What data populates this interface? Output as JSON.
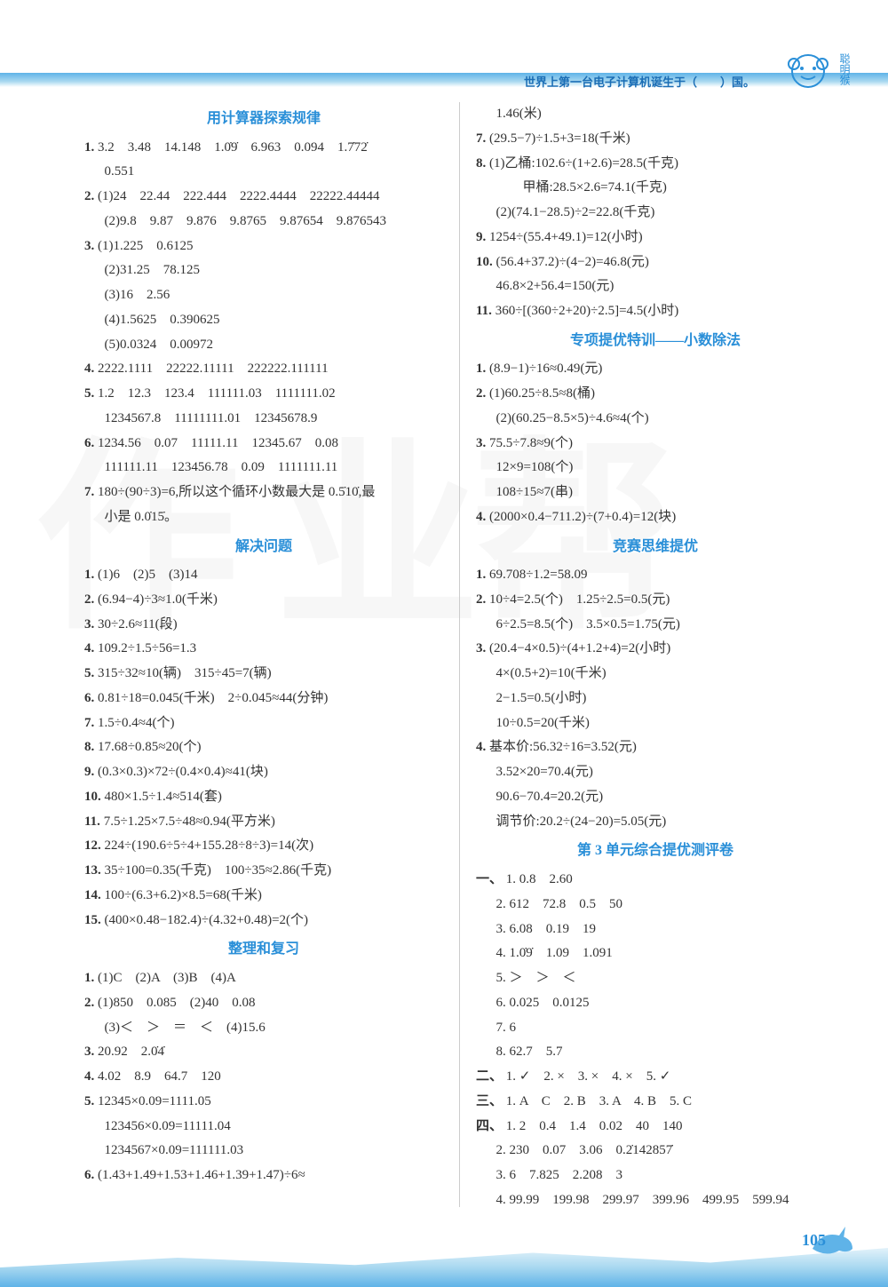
{
  "header": {
    "trivia": "世界上第一台电子计算机诞生于（　　）国。",
    "mascot_label": "聪明猴"
  },
  "page_number": "105",
  "watermark": {
    "text1": "作业",
    "text2": "帮"
  },
  "left": {
    "sections": [
      {
        "title": "用计算器探索规律",
        "items": [
          {
            "n": "1.",
            "t": "3.2　3.48　14.148　1.0̇9̇　6.963　0.094　1.7̇72̇"
          },
          {
            "n": "",
            "t": "0.551",
            "indent": true
          },
          {
            "n": "2.",
            "t": "(1)24　22.44　222.444　2222.4444　22222.44444"
          },
          {
            "n": "",
            "t": "(2)9.8　9.87　9.876　9.8765　9.87654　9.876543",
            "indent": true
          },
          {
            "n": "3.",
            "t": "(1)1.225　0.6125"
          },
          {
            "n": "",
            "t": "(2)31.25　78.125",
            "indent": true
          },
          {
            "n": "",
            "t": "(3)16　2.56",
            "indent": true
          },
          {
            "n": "",
            "t": "(4)1.5625　0.390625",
            "indent": true
          },
          {
            "n": "",
            "t": "(5)0.0324　0.00972",
            "indent": true
          },
          {
            "n": "4.",
            "t": "2222.1111　22222.11111　222222.111111"
          },
          {
            "n": "5.",
            "t": "1.2　12.3　123.4　111111.03　1111111.02"
          },
          {
            "n": "",
            "t": "1234567.8　11111111.01　12345678.9",
            "indent": true
          },
          {
            "n": "6.",
            "t": "1234.56　0.07　11111.11　12345.67　0.08"
          },
          {
            "n": "",
            "t": "111111.11　123456.78　0.09　1111111.11",
            "indent": true
          },
          {
            "n": "7.",
            "t": "180÷(90÷3)=6,所以这个循环小数最大是 0.5̇10̇,最"
          },
          {
            "n": "",
            "t": "小是 0.0̇15̇。",
            "indent": true
          }
        ]
      },
      {
        "title": "解决问题",
        "items": [
          {
            "n": "1.",
            "t": "(1)6　(2)5　(3)14"
          },
          {
            "n": "2.",
            "t": "(6.94−4)÷3≈1.0(千米)"
          },
          {
            "n": "3.",
            "t": "30÷2.6≈11(段)"
          },
          {
            "n": "4.",
            "t": "109.2÷1.5÷56=1.3"
          },
          {
            "n": "5.",
            "t": "315÷32≈10(辆)　315÷45=7(辆)"
          },
          {
            "n": "6.",
            "t": "0.81÷18=0.045(千米)　2÷0.045≈44(分钟)"
          },
          {
            "n": "7.",
            "t": "1.5÷0.4≈4(个)"
          },
          {
            "n": "8.",
            "t": "17.68÷0.85≈20(个)"
          },
          {
            "n": "9.",
            "t": "(0.3×0.3)×72÷(0.4×0.4)≈41(块)"
          },
          {
            "n": "10.",
            "t": "480×1.5÷1.4≈514(套)"
          },
          {
            "n": "11.",
            "t": "7.5÷1.25×7.5÷48≈0.94(平方米)"
          },
          {
            "n": "12.",
            "t": "224÷(190.6÷5÷4+155.28÷8÷3)=14(次)"
          },
          {
            "n": "13.",
            "t": "35÷100=0.35(千克)　100÷35≈2.86(千克)"
          },
          {
            "n": "14.",
            "t": "100÷(6.3+6.2)×8.5=68(千米)"
          },
          {
            "n": "15.",
            "t": "(400×0.48−182.4)÷(4.32+0.48)=2(个)"
          }
        ]
      },
      {
        "title": "整理和复习",
        "items": [
          {
            "n": "1.",
            "t": "(1)C　(2)A　(3)B　(4)A"
          },
          {
            "n": "2.",
            "t": "(1)850　0.085　(2)40　0.08"
          },
          {
            "n": "",
            "t": "(3)＜　＞　＝　＜　(4)15.6",
            "indent": true
          },
          {
            "n": "3.",
            "t": "20.92　2.0̇4̇"
          },
          {
            "n": "4.",
            "t": "4.02　8.9　64.7　120"
          },
          {
            "n": "5.",
            "t": "12345×0.09=1111.05"
          },
          {
            "n": "",
            "t": "123456×0.09=11111.04",
            "indent": true
          },
          {
            "n": "",
            "t": "1234567×0.09=111111.03",
            "indent": true
          },
          {
            "n": "6.",
            "t": "(1.43+1.49+1.53+1.46+1.39+1.47)÷6≈"
          }
        ]
      }
    ]
  },
  "right": {
    "sections": [
      {
        "title": "",
        "items": [
          {
            "n": "",
            "t": "1.46(米)",
            "indent": true
          },
          {
            "n": "7.",
            "t": "(29.5−7)÷1.5+3=18(千米)"
          },
          {
            "n": "8.",
            "t": "(1)乙桶:102.6÷(1+2.6)=28.5(千克)"
          },
          {
            "n": "",
            "t": "　　甲桶:28.5×2.6=74.1(千克)",
            "indent": true
          },
          {
            "n": "",
            "t": "(2)(74.1−28.5)÷2=22.8(千克)",
            "indent": true
          },
          {
            "n": "9.",
            "t": "1254÷(55.4+49.1)=12(小时)"
          },
          {
            "n": "10.",
            "t": "(56.4+37.2)÷(4−2)=46.8(元)"
          },
          {
            "n": "",
            "t": "46.8×2+56.4=150(元)",
            "indent": true
          },
          {
            "n": "11.",
            "t": "360÷[(360÷2+20)÷2.5]=4.5(小时)"
          }
        ]
      },
      {
        "title": "专项提优特训——小数除法",
        "items": [
          {
            "n": "1.",
            "t": "(8.9−1)÷16≈0.49(元)"
          },
          {
            "n": "2.",
            "t": "(1)60.25÷8.5≈8(桶)"
          },
          {
            "n": "",
            "t": "(2)(60.25−8.5×5)÷4.6≈4(个)",
            "indent": true
          },
          {
            "n": "3.",
            "t": "75.5÷7.8≈9(个)"
          },
          {
            "n": "",
            "t": "12×9=108(个)",
            "indent": true
          },
          {
            "n": "",
            "t": "108÷15≈7(串)",
            "indent": true
          },
          {
            "n": "4.",
            "t": "(2000×0.4−711.2)÷(7+0.4)=12(块)"
          }
        ]
      },
      {
        "title": "竞赛思维提优",
        "items": [
          {
            "n": "1.",
            "t": "69.708÷1.2=58.09"
          },
          {
            "n": "2.",
            "t": "10÷4=2.5(个)　1.25÷2.5=0.5(元)"
          },
          {
            "n": "",
            "t": "6÷2.5=8.5(个)　3.5×0.5=1.75(元)",
            "indent": true
          },
          {
            "n": "3.",
            "t": "(20.4−4×0.5)÷(4+1.2+4)=2(小时)"
          },
          {
            "n": "",
            "t": "4×(0.5+2)=10(千米)",
            "indent": true
          },
          {
            "n": "",
            "t": "2−1.5=0.5(小时)",
            "indent": true
          },
          {
            "n": "",
            "t": "10÷0.5=20(千米)",
            "indent": true
          },
          {
            "n": "4.",
            "t": "基本价:56.32÷16=3.52(元)"
          },
          {
            "n": "",
            "t": "3.52×20=70.4(元)",
            "indent": true
          },
          {
            "n": "",
            "t": "90.6−70.4=20.2(元)",
            "indent": true
          },
          {
            "n": "",
            "t": "调节价:20.2÷(24−20)=5.05(元)",
            "indent": true
          }
        ]
      },
      {
        "title": "第 3 单元综合提优测评卷",
        "items": [
          {
            "n": "一、",
            "t": "1. 0.8　2.60",
            "group": true
          },
          {
            "n": "",
            "t": "2. 612　72.8　0.5　50",
            "indent": true
          },
          {
            "n": "",
            "t": "3. 6.08　0.19　19",
            "indent": true
          },
          {
            "n": "",
            "t": "4. 1.0̇9̇　1.09　1.091",
            "indent": true
          },
          {
            "n": "",
            "t": "5. ＞　＞　＜",
            "indent": true
          },
          {
            "n": "",
            "t": "6. 0.025　0.0125",
            "indent": true
          },
          {
            "n": "",
            "t": "7. 6",
            "indent": true
          },
          {
            "n": "",
            "t": "8. 62.7　5.7",
            "indent": true
          },
          {
            "n": "二、",
            "t": "1. ✓　2. ×　3. ×　4. ×　5. ✓",
            "group": true
          },
          {
            "n": "三、",
            "t": "1. A　C　2. B　3. A　4. B　5. C",
            "group": true
          },
          {
            "n": "四、",
            "t": "1. 2　0.4　1.4　0.02　40　140",
            "group": true
          },
          {
            "n": "",
            "t": "2. 230　0.07　3.06　0.2̇142857̇",
            "indent": true
          },
          {
            "n": "",
            "t": "3. 6　7.825　2.208　3",
            "indent": true
          },
          {
            "n": "",
            "t": "4. 99.99　199.98　299.97　399.96　499.95　599.94",
            "indent": true
          }
        ]
      }
    ]
  }
}
